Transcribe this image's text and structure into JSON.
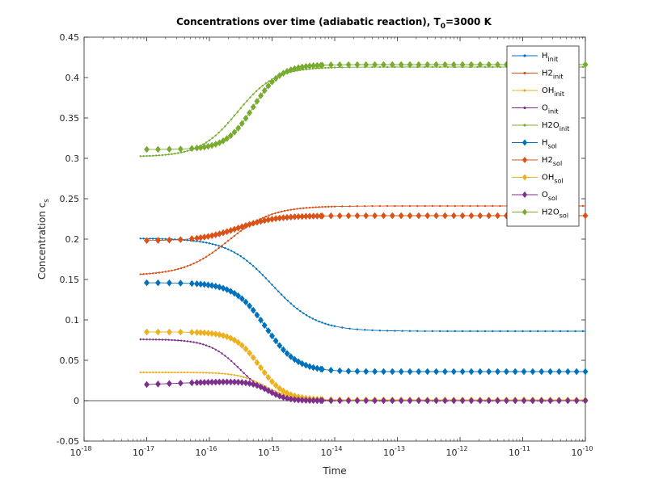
{
  "chart_data": {
    "type": "line",
    "title_main": "Concentrations over time (adiabatic reaction), T",
    "title_sub": "0",
    "title_rest": "=3000 K",
    "xlabel": "Time",
    "ylabel_main": "Concentration c",
    "ylabel_sub": "s",
    "xscale": "log",
    "xlim_exp": [
      -18,
      -10
    ],
    "ylim": [
      -0.05,
      0.45
    ],
    "x_tick_base": "10",
    "x_tick_exps": [
      "-18",
      "-17",
      "-16",
      "-15",
      "-14",
      "-13",
      "-12",
      "-11",
      "-10"
    ],
    "y_ticks": [
      "-0.05",
      "0",
      "0.05",
      "0.1",
      "0.15",
      "0.2",
      "0.25",
      "0.3",
      "0.35",
      "0.4",
      "0.45"
    ],
    "legend_position": "top-right",
    "series": [
      {
        "name": "H",
        "sub": "init",
        "color": "#0072BD",
        "marker": "dot",
        "x0": -17.1,
        "x_mid": -15.0,
        "width": 0.35,
        "y_start": 0.201,
        "y_end": 0.086
      },
      {
        "name": "H2",
        "sub": "init",
        "color": "#D95319",
        "marker": "dot",
        "x0": -17.1,
        "x_mid": -15.7,
        "width": 0.35,
        "y_start": 0.155,
        "y_end": 0.241
      },
      {
        "name": "OH",
        "sub": "init",
        "color": "#EDB120",
        "marker": "dot",
        "x0": -17.1,
        "x_mid": -15.1,
        "width": 0.22,
        "y_start": 0.035,
        "y_end": 0.0
      },
      {
        "name": "O",
        "sub": "init",
        "color": "#7E2F8E",
        "marker": "dot",
        "x0": -17.1,
        "x_mid": -15.5,
        "width": 0.25,
        "y_start": 0.076,
        "y_end": 0.0
      },
      {
        "name": "H2O",
        "sub": "init",
        "color": "#77AC30",
        "marker": "dot",
        "x0": -17.1,
        "x_mid": -15.55,
        "width": 0.3,
        "y_start": 0.302,
        "y_end": 0.413
      },
      {
        "name": "H",
        "sub": "sol",
        "color": "#0072BD",
        "marker": "diamond",
        "x0": -17.0,
        "x_mid": -15.1,
        "width": 0.25,
        "y_start": 0.146,
        "y_end": 0.036
      },
      {
        "name": "H2",
        "sub": "sol",
        "color": "#D95319",
        "marker": "diamond",
        "x0": -17.0,
        "x_mid": -15.55,
        "width": 0.3,
        "y_start": 0.198,
        "y_end": 0.229
      },
      {
        "name": "OH",
        "sub": "sol",
        "color": "#EDB120",
        "marker": "diamond",
        "x0": -17.0,
        "x_mid": -15.2,
        "width": 0.2,
        "y_start": 0.085,
        "y_end": 0.001
      },
      {
        "name": "O",
        "sub": "sol",
        "color": "#7E2F8E",
        "marker": "diamond",
        "x0": -17.0,
        "x_mid": -15.05,
        "width": 0.15,
        "y_start": 0.02,
        "y_end": 0.0,
        "bump": 0.024
      },
      {
        "name": "H2O",
        "sub": "sol",
        "color": "#77AC30",
        "marker": "diamond",
        "x0": -17.0,
        "x_mid": -15.3,
        "width": 0.22,
        "y_start": 0.311,
        "y_end": 0.416
      }
    ]
  }
}
